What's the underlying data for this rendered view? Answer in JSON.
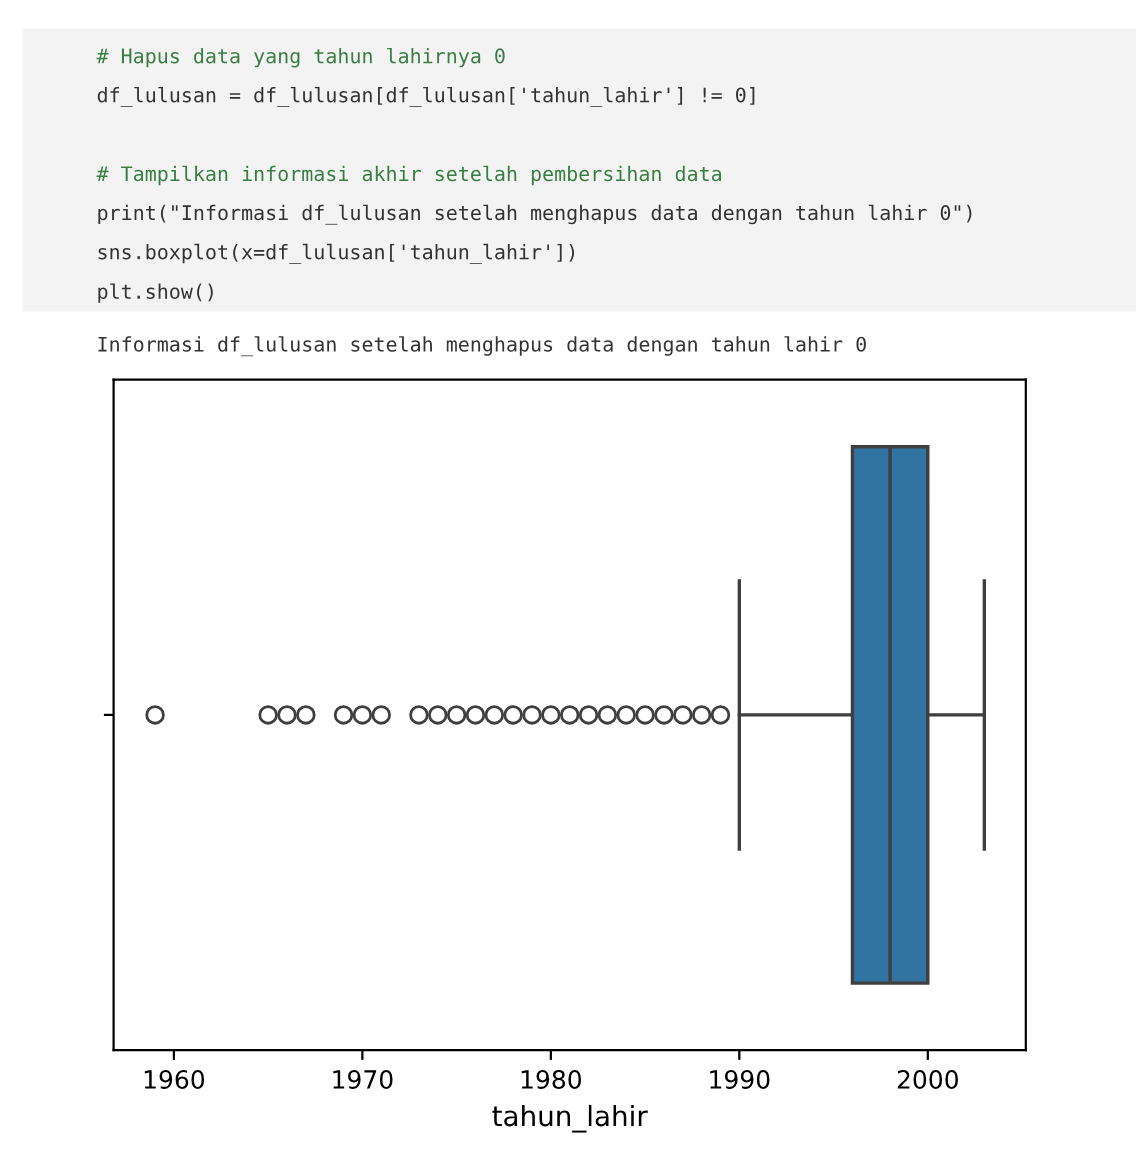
{
  "chart_data": {
    "type": "box",
    "orientation": "horizontal",
    "categories": [
      null
    ],
    "boxes": [
      {
        "low": 1990,
        "q1": 1996,
        "median": 1998,
        "q3": 2000,
        "high": 2003,
        "outliers": [
          1959,
          1965,
          1966,
          1967,
          1969,
          1970,
          1971,
          1973,
          1974,
          1975,
          1976,
          1977,
          1978,
          1979,
          1980,
          1981,
          1982,
          1983,
          1984,
          1985,
          1986,
          1987,
          1988,
          1989
        ]
      }
    ],
    "color": "#3274a1",
    "xlabel": "tahun_lahir",
    "xlim": [
      1956.8,
      2005.2
    ],
    "xticks": [
      1960,
      1970,
      1980,
      1990,
      2000
    ],
    "grid": false,
    "annotations": [
      "# Hapus data yang tahun lahirnya 0",
      "df_lulusan = df_lulusan[df_lulusan['tahun_lahir'] != 0]",
      "# Tampilkan informasi akhir setelah pembersihan data",
      "print(\"Informasi df_lulusan setelah menghapus data dengan tahun lahir 0\")",
      "sns.boxplot(x=df_lulusan['tahun_lahir'])",
      "plt.show()",
      "Informasi df_lulusan setelah menghapus data dengan tahun lahir 0"
    ]
  }
}
